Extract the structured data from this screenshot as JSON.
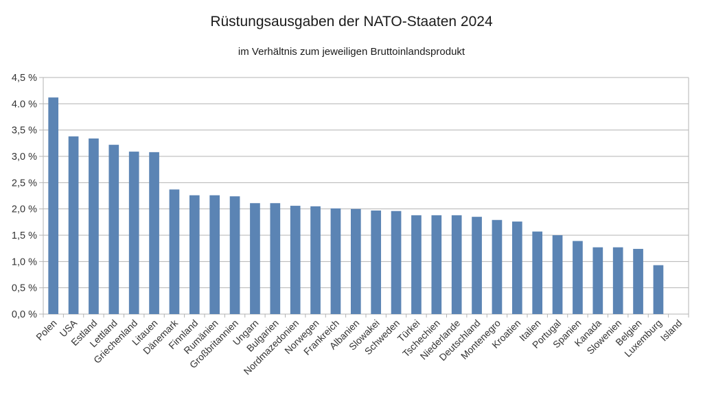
{
  "chart_data": {
    "type": "bar",
    "title": "Rüstungsausgaben der NATO-Staaten 2024",
    "subtitle": "im Verhältnis zum jeweiligen Bruttoinlandsprodukt",
    "xlabel": "",
    "ylabel": "",
    "ylim": [
      0,
      4.5
    ],
    "grid": true,
    "y_ticks": [
      0,
      0.5,
      1.0,
      1.5,
      2.0,
      2.5,
      3.0,
      3.5,
      4.0,
      4.5
    ],
    "y_tick_labels": [
      "0,0 %",
      "0,5 %",
      "1,0 %",
      "1,5 %",
      "2,0 %",
      "2,5 %",
      "3,0 %",
      "3,5 %",
      "4.0 %",
      "4,5 %"
    ],
    "bar_color": "#5b84b4",
    "categories": [
      "Polen",
      "USA",
      "Estland",
      "Lettland",
      "Griechenland",
      "Litauen",
      "Dänemark",
      "Finnland",
      "Rumänien",
      "Großbritannien",
      "Ungarn",
      "Bulgarien",
      "Nordmazedonien",
      "Norwegen",
      "Frankreich",
      "Albanien",
      "Slowakei",
      "Schweden",
      "Türkei",
      "Tschechien",
      "Niederlande",
      "Deutschland",
      "Montenegro",
      "Kroatien",
      "Italien",
      "Portugal",
      "Spanien",
      "Kanada",
      "Slowenien",
      "Belgien",
      "Luxemburg",
      "Island"
    ],
    "values": [
      4.12,
      3.38,
      3.34,
      3.22,
      3.09,
      3.08,
      2.37,
      2.26,
      2.26,
      2.24,
      2.11,
      2.11,
      2.06,
      2.05,
      2.01,
      2.0,
      1.97,
      1.96,
      1.88,
      1.88,
      1.88,
      1.85,
      1.79,
      1.76,
      1.57,
      1.5,
      1.39,
      1.27,
      1.27,
      1.24,
      0.93,
      0.0
    ]
  }
}
